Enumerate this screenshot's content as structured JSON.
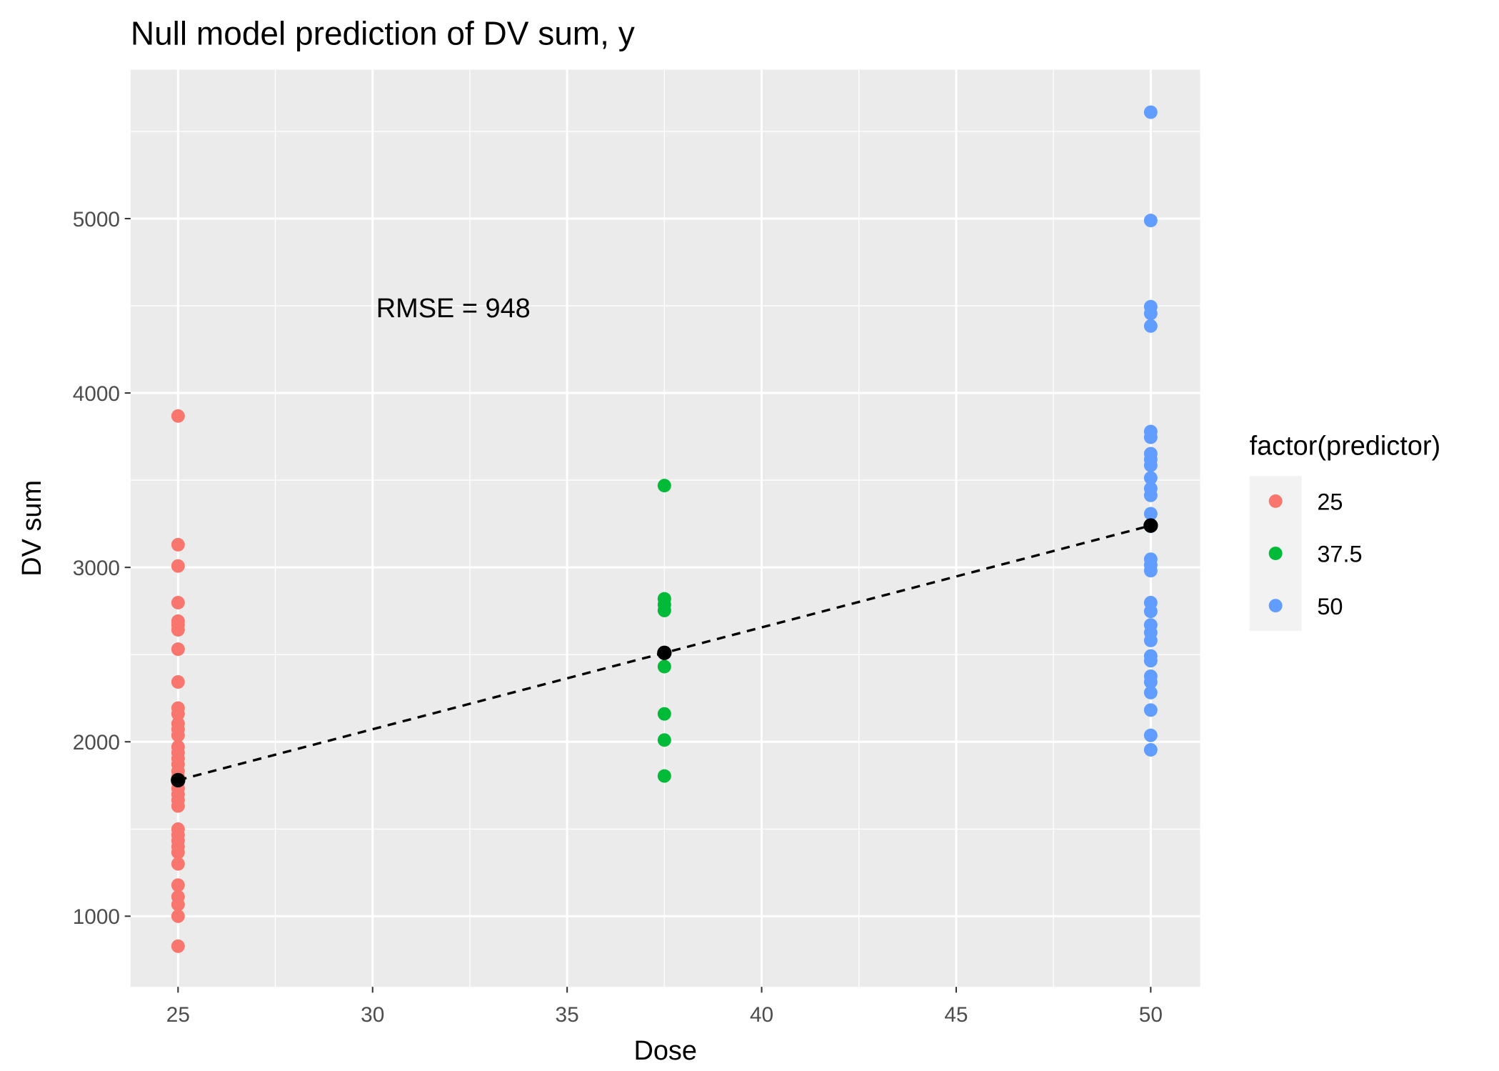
{
  "chart_data": {
    "type": "scatter",
    "title": "Null model prediction of DV sum, y",
    "x_label": "Dose",
    "y_label": "DV sum",
    "legend_title": "factor(predictor)",
    "annotation": "RMSE = 948",
    "xlim": [
      23.78,
      51.27
    ],
    "ylim": [
      595,
      5854
    ],
    "xticks": [
      25,
      30,
      35,
      40,
      45,
      50
    ],
    "yticks": [
      1000,
      2000,
      3000,
      4000,
      5000
    ],
    "grid": true,
    "series": [
      {
        "name": "25",
        "color": "#f8766d",
        "x": [
          25,
          25,
          25,
          25,
          25,
          25,
          25,
          25,
          25,
          25,
          25,
          25,
          25,
          25,
          25,
          25,
          25,
          25,
          25,
          25,
          25,
          25,
          25,
          25,
          25,
          25,
          25,
          25,
          25,
          25,
          25,
          25,
          25,
          25,
          25,
          25
        ],
        "values": [
          3868,
          3130,
          3008,
          2798,
          2692,
          2670,
          2642,
          2531,
          2343,
          2193,
          2160,
          2104,
          2071,
          2037,
          1971,
          1938,
          1904,
          1871,
          1832,
          1799,
          1766,
          1732,
          1699,
          1666,
          1632,
          1499,
          1466,
          1433,
          1399,
          1366,
          1300,
          1178,
          1111,
          1067,
          1000,
          828
        ]
      },
      {
        "name": "37.5",
        "color": "#00ba38",
        "x": [
          37.5,
          37.5,
          37.5,
          37.5,
          37.5,
          37.5,
          37.5,
          37.5,
          37.5
        ],
        "values": [
          3469,
          2820,
          2786,
          2753,
          2509,
          2431,
          2160,
          2010,
          1804
        ]
      },
      {
        "name": "50",
        "color": "#619cff",
        "x": [
          50,
          50,
          50,
          50,
          50,
          50,
          50,
          50,
          50,
          50,
          50,
          50,
          50,
          50,
          50,
          50,
          50,
          50,
          50,
          50,
          50,
          50,
          50,
          50,
          50,
          50,
          50,
          50,
          50,
          50,
          50
        ],
        "values": [
          5610,
          4989,
          4495,
          4456,
          4384,
          3779,
          3746,
          3652,
          3619,
          3585,
          3513,
          3452,
          3413,
          3308,
          3236,
          3047,
          3014,
          2981,
          2798,
          2748,
          2670,
          2626,
          2581,
          2492,
          2465,
          2376,
          2343,
          2282,
          2182,
          2037,
          1954
        ]
      }
    ],
    "means": {
      "color": "#000000",
      "x": [
        25,
        37.5,
        50
      ],
      "values": [
        1780,
        2510,
        3240
      ]
    }
  }
}
